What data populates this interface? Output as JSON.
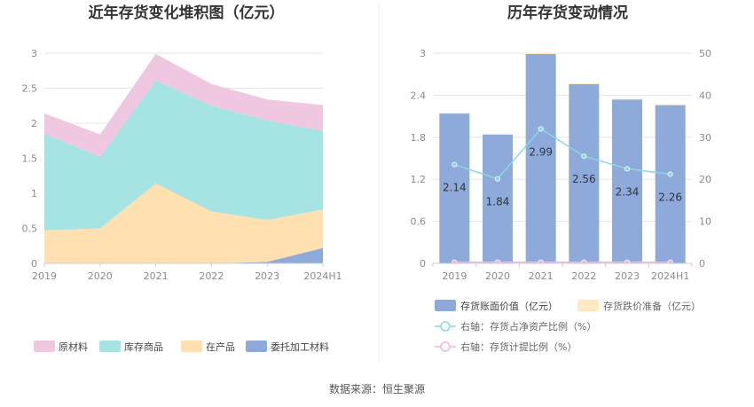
{
  "left_chart": {
    "title": "近年存货变化堆积图（亿元）",
    "chart_data": {
      "type": "area",
      "stacked": true,
      "x": [
        "2019",
        "2020",
        "2021",
        "2022",
        "2023",
        "2024H1"
      ],
      "ylim": [
        0,
        3
      ],
      "yticks": [
        "0",
        "0.5",
        "1",
        "1.5",
        "2",
        "2.5",
        "3"
      ],
      "grid": true,
      "legend_position": "bottom",
      "series": [
        {
          "name": "委托加工材料",
          "color": "#8eaadb",
          "values": [
            0,
            0,
            0,
            0,
            0.02,
            0.22
          ]
        },
        {
          "name": "在产品",
          "color": "#ffe0b0",
          "values": [
            0.47,
            0.5,
            1.14,
            0.74,
            0.6,
            0.55
          ]
        },
        {
          "name": "库存商品",
          "color": "#a6e3e3",
          "values": [
            1.38,
            1.02,
            1.47,
            1.51,
            1.42,
            1.12
          ]
        },
        {
          "name": "原材料",
          "color": "#f0c7e0",
          "values": [
            0.29,
            0.32,
            0.38,
            0.31,
            0.3,
            0.37
          ]
        }
      ],
      "legend_order": [
        "原材料",
        "库存商品",
        "在产品",
        "委托加工材料"
      ]
    }
  },
  "right_chart": {
    "title": "历年存货变动情况",
    "chart_data": {
      "type": "bar",
      "categories": [
        "2019",
        "2020",
        "2021",
        "2022",
        "2023",
        "2024H1"
      ],
      "ylim": [
        0,
        3
      ],
      "yticks": [
        "0",
        "0.6",
        "1.2",
        "1.8",
        "2.4",
        "3"
      ],
      "y2lim": [
        0,
        50
      ],
      "y2ticks": [
        "0",
        "10",
        "20",
        "30",
        "40",
        "50"
      ],
      "grid": true,
      "legend_position": "bottom",
      "series": [
        {
          "name": "存货账面价值（亿元）",
          "kind": "bar",
          "axis": "left",
          "color": "#8eaadb",
          "values": [
            2.14,
            1.84,
            2.99,
            2.56,
            2.34,
            2.26
          ],
          "labels": [
            "2.14",
            "1.84",
            "2.99",
            "2.56",
            "2.34",
            "2.26"
          ]
        },
        {
          "name": "存货跌价准备（亿元）",
          "kind": "bar",
          "axis": "left",
          "color": "#ffe8c4",
          "values": [
            0.01,
            0.01,
            0.01,
            0.01,
            0.01,
            0.01
          ]
        },
        {
          "name": "右轴：存货占净资产比例（%）",
          "kind": "line",
          "axis": "right",
          "color": "#88d8e0",
          "values": [
            23.5,
            20.1,
            32.0,
            25.5,
            22.5,
            21.2
          ]
        },
        {
          "name": "右轴：存货计提比例（%）",
          "kind": "line",
          "axis": "right",
          "color": "#f0b8d8",
          "values": [
            0.3,
            0.3,
            0.3,
            0.3,
            0.3,
            0.3
          ]
        }
      ]
    }
  },
  "footer": {
    "source": "数据来源：恒生聚源"
  }
}
